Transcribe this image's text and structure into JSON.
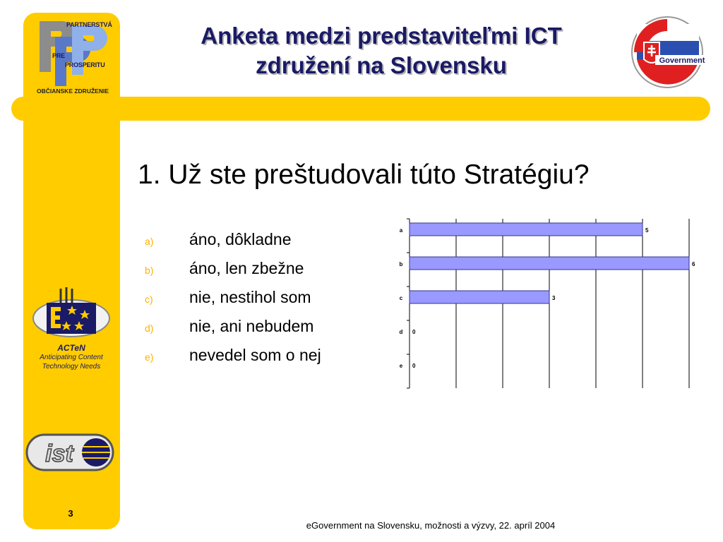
{
  "header": {
    "title_line1": "Anketa medzi predstaviteľmi ICT",
    "title_line2": "združení na Slovensku"
  },
  "logos": {
    "ppp": {
      "icon": "ppp-logo-icon",
      "text_partnerstva": "PARTNERSTVÁ",
      "text_pre": "PRE",
      "text_prosperitu": "PROSPERITU",
      "caption": "OBČIANSKE ZDRUŽENIE"
    },
    "acten": {
      "icon": "acten-logo-icon",
      "name": "ACTeN",
      "line1": "Anticipating Content",
      "line2": "Technology Needs"
    },
    "ist": {
      "icon": "ist-logo-icon",
      "text": "ist"
    },
    "egov": {
      "icon": "egovernment-logo-icon",
      "text": "Government"
    }
  },
  "question": "1. Už ste preštudovali túto Stratégiu?",
  "options": [
    {
      "marker": "a)",
      "text": "áno, dôkladne"
    },
    {
      "marker": "b)",
      "text": "áno, len zbežne"
    },
    {
      "marker": "c)",
      "text": "nie, nestihol som"
    },
    {
      "marker": "d)",
      "text": "nie, ani nebudem"
    },
    {
      "marker": "e)",
      "text": "nevedel som o nej"
    }
  ],
  "chart_data": {
    "type": "bar",
    "orientation": "horizontal",
    "categories": [
      "a",
      "b",
      "c",
      "d",
      "e"
    ],
    "values": [
      5,
      6,
      3,
      0,
      0
    ],
    "data_labels": [
      "5",
      "6",
      "3",
      "0",
      "0"
    ],
    "xlim": [
      0,
      6
    ],
    "grid": true,
    "bar_color": "#9999FF",
    "bar_border": "#333399"
  },
  "page_number": "3",
  "footer": "eGovernment na Slovensku, možnosti a výzvy, 22. apríl 2004",
  "colors": {
    "accent_yellow": "#FFCC00",
    "title_navy": "#1a1a66",
    "marker_orange": "#FFB000"
  }
}
